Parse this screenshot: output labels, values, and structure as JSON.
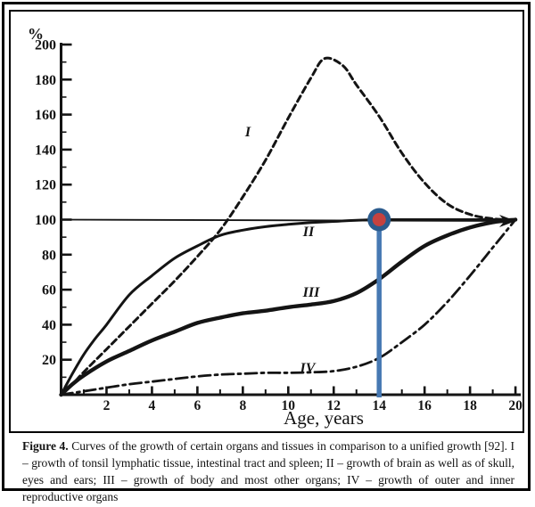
{
  "figure": {
    "caption_label": "Figure 4.",
    "caption_text": " Curves of the growth of certain organs and tissues in comparison to a unified growth [92].  I – growth of tonsil lymphatic tissue, intestinal tract and spleen; II – growth of brain as well as of skull, eyes and ears; III – growth of body and most other organs; IV – growth of outer and inner reproductive organs"
  },
  "annotation": {
    "age": 14,
    "percent": 100,
    "line_color": "#4779b3",
    "ring_color": "#2b5b8d",
    "dot_color": "#c5423f"
  },
  "chart_data": {
    "type": "line",
    "title": "",
    "xlabel": "Age, years",
    "ylabel": "%",
    "xlim": [
      0,
      20
    ],
    "ylim": [
      0,
      200
    ],
    "grid": false,
    "x_major_ticks": [
      2,
      4,
      6,
      8,
      10,
      12,
      14,
      16,
      18,
      20
    ],
    "x_minor_ticks": [
      1,
      3,
      5,
      7,
      9,
      11,
      13,
      15,
      17,
      19
    ],
    "y_major_ticks": [
      20,
      40,
      60,
      80,
      100,
      120,
      140,
      160,
      180,
      200
    ],
    "y_minor_ticks": [
      10,
      30,
      50,
      70,
      90,
      110,
      130,
      150,
      170,
      190
    ],
    "reference_line_y": 100,
    "ink_color": "#141414",
    "series": [
      {
        "name": "I",
        "description": "growth of tonsil lymphatic tissue, intestinal tract and spleen",
        "style": "dashed",
        "points": [
          [
            0,
            0
          ],
          [
            0.5,
            6
          ],
          [
            1,
            13
          ],
          [
            2,
            26
          ],
          [
            3,
            39
          ],
          [
            4,
            52
          ],
          [
            5,
            65
          ],
          [
            6,
            79
          ],
          [
            7,
            94
          ],
          [
            8,
            113
          ],
          [
            9,
            134
          ],
          [
            10,
            158
          ],
          [
            11,
            181
          ],
          [
            11.6,
            192
          ],
          [
            12.4,
            188
          ],
          [
            13,
            177
          ],
          [
            14,
            159
          ],
          [
            15,
            138
          ],
          [
            16,
            121
          ],
          [
            17,
            109
          ],
          [
            18,
            103
          ],
          [
            19,
            100.5
          ],
          [
            20,
            100
          ]
        ]
      },
      {
        "name": "II",
        "description": "growth of brain as well as of skull, eyes and ears",
        "style": "solid-thin",
        "points": [
          [
            0,
            0
          ],
          [
            0.5,
            12
          ],
          [
            1,
            23
          ],
          [
            1.5,
            32
          ],
          [
            2,
            40
          ],
          [
            3,
            57
          ],
          [
            4,
            68
          ],
          [
            5,
            78
          ],
          [
            6,
            85
          ],
          [
            7,
            91
          ],
          [
            8,
            94
          ],
          [
            9,
            96
          ],
          [
            10,
            97.3
          ],
          [
            11,
            98.3
          ],
          [
            12,
            99
          ],
          [
            13,
            99.6
          ],
          [
            14,
            100
          ],
          [
            16,
            100
          ],
          [
            18,
            100
          ],
          [
            20,
            100
          ]
        ]
      },
      {
        "name": "III",
        "description": "growth of body and most other organs",
        "style": "solid-thick",
        "points": [
          [
            0,
            0
          ],
          [
            0.5,
            6
          ],
          [
            1,
            11
          ],
          [
            2,
            19
          ],
          [
            3,
            25
          ],
          [
            4,
            31
          ],
          [
            5,
            36
          ],
          [
            6,
            41
          ],
          [
            7,
            44
          ],
          [
            8,
            46.5
          ],
          [
            9,
            48
          ],
          [
            10,
            50
          ],
          [
            11,
            51.5
          ],
          [
            12,
            53.5
          ],
          [
            13,
            58
          ],
          [
            14,
            66
          ],
          [
            15,
            76
          ],
          [
            16,
            85
          ],
          [
            17,
            91
          ],
          [
            18,
            95.5
          ],
          [
            19,
            98.5
          ],
          [
            20,
            100
          ]
        ]
      },
      {
        "name": "IV",
        "description": "growth of outer and inner reproductive organs",
        "style": "dash-dot",
        "points": [
          [
            0,
            0
          ],
          [
            1,
            2
          ],
          [
            2,
            4
          ],
          [
            3,
            6
          ],
          [
            4,
            7.5
          ],
          [
            5,
            9
          ],
          [
            6,
            10.5
          ],
          [
            7,
            11.5
          ],
          [
            8,
            12
          ],
          [
            9,
            12.5
          ],
          [
            10,
            12.5
          ],
          [
            11,
            12.8
          ],
          [
            12,
            13.5
          ],
          [
            13,
            16
          ],
          [
            14,
            21
          ],
          [
            15,
            30
          ],
          [
            16,
            40
          ],
          [
            17,
            53
          ],
          [
            18,
            68
          ],
          [
            19,
            84
          ],
          [
            20,
            100
          ]
        ]
      }
    ]
  }
}
